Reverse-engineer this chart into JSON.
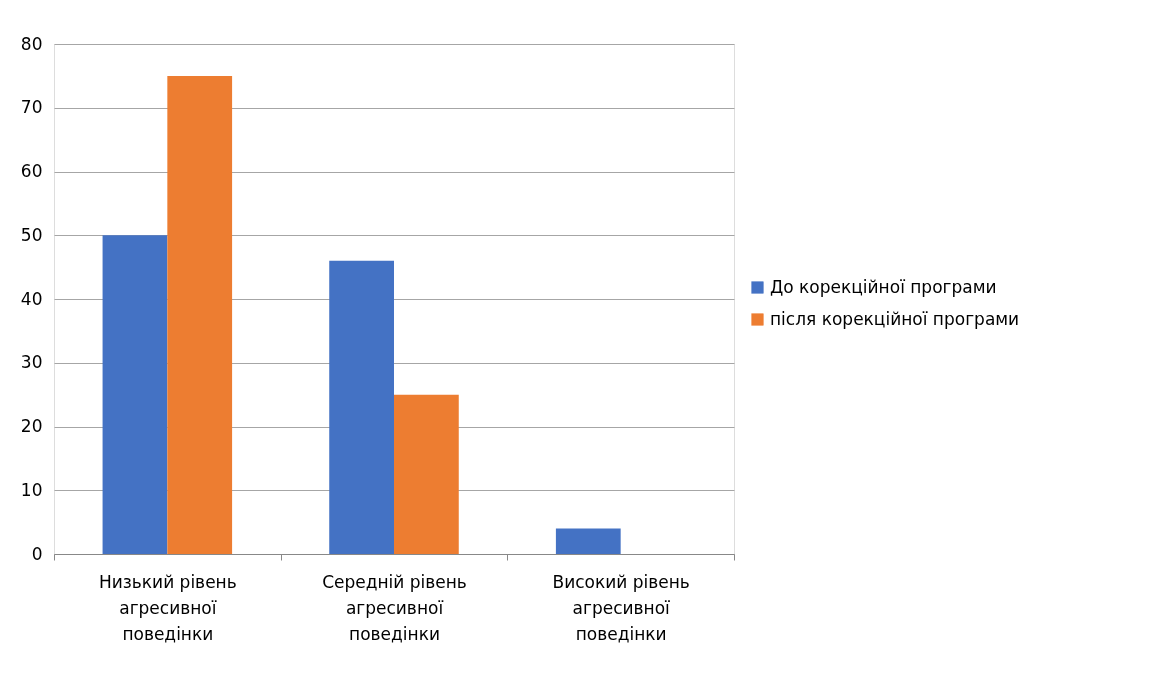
{
  "chart_data": {
    "type": "bar",
    "categories": [
      "Низький рівень агресивної поведінки",
      "Середній рівень агресивної поведінки",
      "Високий рівень агресивної поведінки"
    ],
    "series": [
      {
        "name": "До корекційної програми",
        "color": "#4472c4",
        "values": [
          50,
          46,
          4
        ]
      },
      {
        "name": "після корекційної програми",
        "color": "#ed7d31",
        "values": [
          75,
          25,
          0
        ]
      }
    ],
    "ylim": [
      0,
      80
    ],
    "yticks": [
      0,
      10,
      20,
      30,
      40,
      50,
      60,
      70,
      80
    ],
    "grid": "y",
    "legend": "right"
  }
}
